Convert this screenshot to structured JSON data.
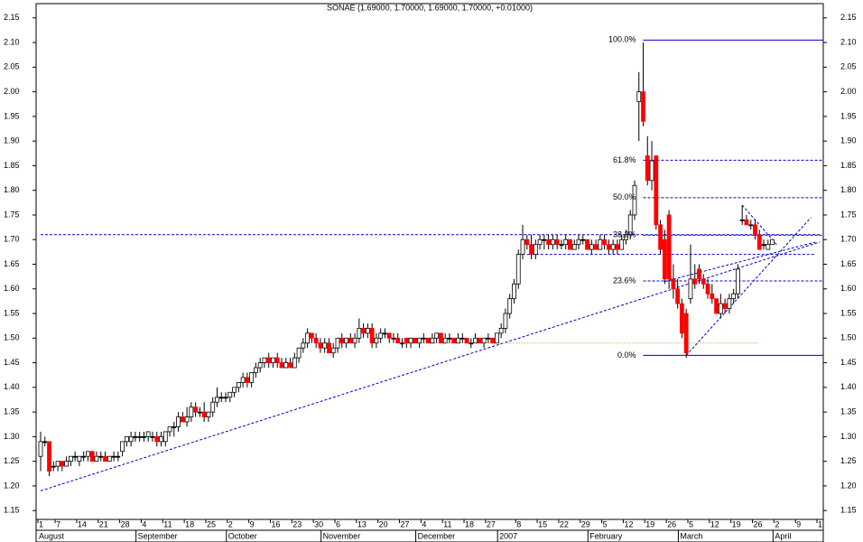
{
  "chart_data": {
    "type": "candlestick",
    "title": "SONAE (1.69000, 1.70000, 1.69000, 1.70000, +0.01000)",
    "categories": [
      "1",
      null,
      null,
      null,
      "7",
      null,
      null,
      null,
      null,
      "14",
      null,
      null,
      null,
      null,
      "21",
      null,
      null,
      null,
      null,
      "28",
      null,
      null,
      null,
      null,
      "4",
      null,
      null,
      null,
      null,
      "11",
      null,
      null,
      null,
      null,
      "18",
      null,
      null,
      null,
      null,
      "25",
      null,
      null,
      null,
      null,
      "2",
      null,
      null,
      null,
      null,
      "9",
      null,
      null,
      null,
      null,
      "16",
      null,
      null,
      null,
      null,
      "23",
      null,
      null,
      null,
      null,
      "30",
      null,
      null,
      null,
      null,
      "6",
      null,
      null,
      null,
      null,
      "13",
      null,
      null,
      null,
      null,
      "20",
      null,
      null,
      null,
      null,
      "27",
      null,
      null,
      null,
      null,
      "4",
      null,
      null,
      null,
      null,
      "11",
      null,
      null,
      null,
      null,
      "18",
      null,
      null,
      null,
      null,
      "27",
      null,
      null,
      null,
      null,
      null,
      null,
      "8",
      null,
      null,
      null,
      null,
      "15",
      null,
      null,
      null,
      null,
      "22",
      null,
      null,
      null,
      null,
      "29",
      null,
      null,
      null,
      null,
      "5",
      null,
      null,
      null,
      null,
      "12",
      null,
      null,
      null,
      null,
      "19",
      null,
      null,
      null,
      null,
      "26",
      null,
      null,
      null,
      null,
      "5",
      null,
      null,
      null,
      null,
      "12",
      null,
      null,
      null,
      null,
      "19",
      null,
      null,
      null,
      null,
      "26",
      null,
      null,
      null,
      null,
      "2",
      null,
      null,
      null,
      null,
      "9",
      null,
      null,
      null,
      null,
      "1"
    ],
    "months": [
      "August",
      null,
      null,
      null,
      null,
      null,
      null,
      null,
      null,
      null,
      null,
      null,
      null,
      null,
      null,
      null,
      null,
      null,
      null,
      null,
      null,
      null,
      null,
      "September",
      null,
      null,
      null,
      null,
      null,
      null,
      null,
      null,
      null,
      null,
      null,
      null,
      null,
      null,
      null,
      null,
      null,
      null,
      null,
      null,
      "October",
      null,
      null,
      null,
      null,
      null,
      null,
      null,
      null,
      null,
      null,
      null,
      null,
      null,
      null,
      null,
      null,
      null,
      null,
      null,
      null,
      null,
      "November",
      null,
      null,
      null,
      null,
      null,
      null,
      null,
      null,
      null,
      null,
      null,
      null,
      null,
      null,
      null,
      null,
      null,
      null,
      null,
      null,
      null,
      "December",
      null,
      null,
      null,
      null,
      null,
      null,
      null,
      null,
      null,
      null,
      null,
      null,
      null,
      null,
      null,
      null,
      null,
      null,
      "2007",
      null,
      null,
      null,
      null,
      null,
      null,
      null,
      null,
      null,
      null,
      null,
      null,
      null,
      null,
      null,
      null,
      null,
      null,
      null,
      null,
      "February",
      null,
      null,
      null,
      null,
      null,
      null,
      null,
      null,
      null,
      null,
      null,
      null,
      null,
      null,
      null,
      null,
      null,
      null,
      null,
      null,
      "March",
      null,
      null,
      null,
      null,
      null,
      null,
      null,
      null,
      null,
      null,
      null,
      null,
      null,
      null,
      null,
      null,
      null,
      null,
      null,
      null,
      null,
      "April",
      null,
      null,
      null,
      null,
      null,
      null,
      null,
      null,
      null,
      null
    ],
    "open": [
      1.26,
      1.29,
      1.29,
      1.24,
      1.24,
      1.25,
      1.24,
      1.25,
      1.26,
      1.25,
      1.26,
      1.26,
      1.27,
      1.25,
      1.26,
      1.26,
      1.25,
      1.26,
      1.26,
      1.27,
      1.29,
      1.29,
      1.3,
      1.3,
      1.3,
      1.3,
      1.3,
      1.3,
      1.29,
      1.29,
      1.31,
      1.32,
      1.32,
      1.34,
      1.33,
      1.34,
      1.36,
      1.35,
      1.35,
      1.34,
      1.35,
      1.37,
      1.38,
      1.38,
      1.38,
      1.39,
      1.4,
      1.41,
      1.42,
      1.41,
      1.43,
      1.44,
      1.45,
      1.46,
      1.45,
      1.46,
      1.45,
      1.44,
      1.45,
      1.44,
      1.46,
      1.48,
      1.49,
      1.51,
      1.5,
      1.49,
      1.48,
      1.49,
      1.47,
      1.48,
      1.5,
      1.49,
      1.5,
      1.49,
      1.5,
      1.52,
      1.51,
      1.52,
      1.49,
      1.5,
      1.51,
      1.51,
      1.5,
      1.5,
      1.49,
      1.5,
      1.49,
      1.5,
      1.49,
      1.5,
      1.5,
      1.49,
      1.5,
      1.51,
      1.49,
      1.5,
      1.5,
      1.49,
      1.5,
      1.5,
      1.49,
      1.49,
      1.5,
      1.49,
      1.5,
      1.5,
      1.49,
      1.51,
      1.52,
      1.55,
      1.58,
      1.61,
      1.67,
      1.7,
      1.69,
      1.67,
      1.69,
      1.7,
      1.7,
      1.69,
      1.7,
      1.69,
      1.69,
      1.7,
      1.68,
      1.69,
      1.7,
      1.7,
      1.68,
      1.69,
      1.68,
      1.7,
      1.69,
      1.68,
      1.69,
      1.68,
      1.7,
      1.71,
      1.75,
      1.98,
      2.0,
      1.87,
      1.82,
      1.87,
      1.73,
      1.7,
      1.75,
      1.62,
      1.6,
      1.57,
      1.55,
      1.58,
      1.62,
      1.64,
      1.62,
      1.61,
      1.59,
      1.58,
      1.55,
      1.57,
      1.56,
      1.58,
      1.59,
      1.74,
      1.74,
      1.73,
      1.73,
      1.71,
      1.69,
      1.68,
      1.69,
      null,
      null,
      null,
      null,
      null,
      null,
      null,
      null,
      null,
      null,
      null
    ],
    "high": [
      1.31,
      1.3,
      1.29,
      1.25,
      1.25,
      1.25,
      1.26,
      1.26,
      1.27,
      1.26,
      1.27,
      1.27,
      1.27,
      1.27,
      1.27,
      1.27,
      1.26,
      1.27,
      1.27,
      1.29,
      1.3,
      1.31,
      1.31,
      1.31,
      1.31,
      1.31,
      1.31,
      1.31,
      1.31,
      1.31,
      1.32,
      1.33,
      1.35,
      1.35,
      1.36,
      1.37,
      1.37,
      1.36,
      1.37,
      1.35,
      1.38,
      1.4,
      1.39,
      1.39,
      1.39,
      1.4,
      1.41,
      1.43,
      1.43,
      1.43,
      1.45,
      1.46,
      1.46,
      1.47,
      1.46,
      1.47,
      1.46,
      1.46,
      1.46,
      1.47,
      1.48,
      1.5,
      1.52,
      1.51,
      1.51,
      1.5,
      1.5,
      1.5,
      1.49,
      1.5,
      1.51,
      1.5,
      1.51,
      1.51,
      1.54,
      1.53,
      1.53,
      1.53,
      1.51,
      1.52,
      1.52,
      1.51,
      1.51,
      1.51,
      1.5,
      1.5,
      1.5,
      1.5,
      1.5,
      1.51,
      1.5,
      1.51,
      1.51,
      1.51,
      1.51,
      1.51,
      1.5,
      1.51,
      1.51,
      1.5,
      1.5,
      1.51,
      1.5,
      1.5,
      1.51,
      1.5,
      1.51,
      1.53,
      1.56,
      1.59,
      1.62,
      1.68,
      1.73,
      1.71,
      1.71,
      1.7,
      1.71,
      1.71,
      1.71,
      1.71,
      1.71,
      1.7,
      1.71,
      1.7,
      1.7,
      1.71,
      1.71,
      1.7,
      1.7,
      1.7,
      1.71,
      1.71,
      1.7,
      1.7,
      1.7,
      1.71,
      1.72,
      1.76,
      1.82,
      2.04,
      2.1,
      1.91,
      1.9,
      1.87,
      1.74,
      1.72,
      1.76,
      1.65,
      1.62,
      1.58,
      1.56,
      1.69,
      1.65,
      1.65,
      1.63,
      1.62,
      1.61,
      1.58,
      1.59,
      1.58,
      1.59,
      1.6,
      1.65,
      1.77,
      1.75,
      1.74,
      1.74,
      1.72,
      1.7,
      1.7,
      1.7,
      null,
      null,
      null,
      null,
      null,
      null,
      null,
      null,
      null,
      null,
      null
    ],
    "low": [
      1.23,
      1.28,
      1.22,
      1.23,
      1.23,
      1.23,
      1.24,
      1.24,
      1.25,
      1.24,
      1.25,
      1.25,
      1.25,
      1.25,
      1.25,
      1.25,
      1.25,
      1.25,
      1.25,
      1.26,
      1.28,
      1.28,
      1.29,
      1.29,
      1.29,
      1.29,
      1.29,
      1.28,
      1.28,
      1.28,
      1.3,
      1.3,
      1.31,
      1.33,
      1.32,
      1.33,
      1.34,
      1.34,
      1.33,
      1.33,
      1.34,
      1.36,
      1.37,
      1.37,
      1.37,
      1.38,
      1.39,
      1.4,
      1.4,
      1.4,
      1.42,
      1.43,
      1.44,
      1.44,
      1.44,
      1.44,
      1.44,
      1.44,
      1.44,
      1.44,
      1.45,
      1.47,
      1.48,
      1.49,
      1.48,
      1.47,
      1.47,
      1.47,
      1.46,
      1.47,
      1.48,
      1.48,
      1.49,
      1.48,
      1.49,
      1.5,
      1.5,
      1.48,
      1.48,
      1.49,
      1.5,
      1.49,
      1.49,
      1.49,
      1.48,
      1.48,
      1.48,
      1.49,
      1.48,
      1.49,
      1.49,
      1.49,
      1.49,
      1.49,
      1.49,
      1.49,
      1.49,
      1.49,
      1.49,
      1.49,
      1.48,
      1.49,
      1.49,
      1.48,
      1.49,
      1.49,
      1.49,
      1.5,
      1.51,
      1.54,
      1.57,
      1.6,
      1.66,
      1.68,
      1.66,
      1.66,
      1.68,
      1.68,
      1.68,
      1.68,
      1.68,
      1.68,
      1.68,
      1.68,
      1.68,
      1.68,
      1.69,
      1.68,
      1.67,
      1.68,
      1.68,
      1.68,
      1.67,
      1.67,
      1.67,
      1.68,
      1.69,
      1.7,
      1.74,
      1.9,
      1.93,
      1.81,
      1.8,
      1.72,
      1.67,
      1.61,
      1.6,
      1.58,
      1.56,
      1.5,
      1.46,
      1.57,
      1.6,
      1.61,
      1.6,
      1.58,
      1.57,
      1.55,
      1.54,
      1.55,
      1.55,
      1.57,
      1.58,
      1.73,
      1.73,
      1.72,
      1.7,
      1.68,
      1.68,
      1.68,
      1.69,
      null,
      null,
      null,
      null,
      null,
      null,
      null,
      null,
      null,
      null,
      null
    ],
    "close": [
      1.29,
      1.29,
      1.23,
      1.24,
      1.25,
      1.24,
      1.25,
      1.26,
      1.26,
      1.26,
      1.26,
      1.27,
      1.25,
      1.26,
      1.26,
      1.25,
      1.26,
      1.26,
      1.26,
      1.29,
      1.3,
      1.3,
      1.3,
      1.3,
      1.3,
      1.31,
      1.3,
      1.29,
      1.3,
      1.31,
      1.32,
      1.32,
      1.34,
      1.33,
      1.34,
      1.36,
      1.35,
      1.35,
      1.34,
      1.35,
      1.37,
      1.38,
      1.38,
      1.38,
      1.39,
      1.4,
      1.41,
      1.42,
      1.41,
      1.43,
      1.44,
      1.45,
      1.46,
      1.45,
      1.46,
      1.45,
      1.44,
      1.45,
      1.44,
      1.46,
      1.48,
      1.49,
      1.51,
      1.5,
      1.49,
      1.48,
      1.49,
      1.47,
      1.48,
      1.5,
      1.49,
      1.5,
      1.49,
      1.5,
      1.52,
      1.51,
      1.52,
      1.49,
      1.5,
      1.51,
      1.51,
      1.5,
      1.5,
      1.49,
      1.49,
      1.49,
      1.5,
      1.49,
      1.5,
      1.5,
      1.49,
      1.5,
      1.51,
      1.49,
      1.5,
      1.5,
      1.49,
      1.5,
      1.5,
      1.49,
      1.49,
      1.5,
      1.49,
      1.5,
      1.5,
      1.49,
      1.51,
      1.52,
      1.55,
      1.58,
      1.61,
      1.67,
      1.7,
      1.69,
      1.67,
      1.69,
      1.7,
      1.7,
      1.69,
      1.7,
      1.69,
      1.69,
      1.7,
      1.68,
      1.69,
      1.7,
      1.7,
      1.68,
      1.69,
      1.68,
      1.7,
      1.69,
      1.68,
      1.69,
      1.68,
      1.7,
      1.71,
      1.75,
      1.81,
      2.0,
      1.94,
      1.82,
      1.86,
      1.73,
      1.68,
      1.62,
      1.62,
      1.6,
      1.57,
      1.51,
      1.47,
      1.62,
      1.61,
      1.62,
      1.61,
      1.59,
      1.58,
      1.55,
      1.57,
      1.56,
      1.58,
      1.59,
      1.64,
      1.74,
      1.73,
      1.73,
      1.71,
      1.68,
      1.69,
      1.69,
      1.7,
      null,
      null,
      null,
      null,
      null,
      null,
      null,
      null,
      null,
      null,
      null
    ],
    "up_color": "#ffffff",
    "down_color": "#ff0000",
    "flat_color": "#000000",
    "ylim": [
      1.132,
      2.179
    ],
    "yticks": [
      {
        "value": 1.15,
        "label": "1.15"
      },
      {
        "value": 1.2,
        "label": "1.20"
      },
      {
        "value": 1.25,
        "label": "1.25"
      },
      {
        "value": 1.3,
        "label": "1.30"
      },
      {
        "value": 1.35,
        "label": "1.35"
      },
      {
        "value": 1.4,
        "label": "1.40"
      },
      {
        "value": 1.45,
        "label": "1.45"
      },
      {
        "value": 1.5,
        "label": "1.50"
      },
      {
        "value": 1.55,
        "label": "1.55"
      },
      {
        "value": 1.6,
        "label": "1.60"
      },
      {
        "value": 1.65,
        "label": "1.65"
      },
      {
        "value": 1.7,
        "label": "1.70"
      },
      {
        "value": 1.75,
        "label": "1.75"
      },
      {
        "value": 1.8,
        "label": "1.80"
      },
      {
        "value": 1.85,
        "label": "1.85"
      },
      {
        "value": 1.9,
        "label": "1.90"
      },
      {
        "value": 1.95,
        "label": "1.95"
      },
      {
        "value": 2.0,
        "label": "2.00"
      },
      {
        "value": 2.05,
        "label": "2.05"
      },
      {
        "value": 2.1,
        "label": "2.10"
      },
      {
        "value": 2.15,
        "label": "2.15"
      }
    ],
    "trendlines": [
      {
        "points": [
          [
            0,
            1.19
          ],
          [
            181,
            1.695
          ]
        ],
        "color": "#0000cc",
        "dash": "3,2"
      },
      {
        "points": [
          [
            0,
            1.71
          ],
          [
            181,
            1.71
          ]
        ],
        "color": "#0000cc",
        "dash": "3,2"
      },
      {
        "points": [
          [
            113,
            1.67
          ],
          [
            180,
            1.67
          ]
        ],
        "color": "#0000cc",
        "dash": "3,2"
      },
      {
        "points": [
          [
            84,
            1.49
          ],
          [
            167,
            1.49
          ]
        ],
        "color": "#cc8800",
        "dash": "1,2"
      },
      {
        "points": [
          [
            150,
            1.465
          ],
          [
            179,
            1.745
          ]
        ],
        "color": "#0000cc",
        "dash": "3,2"
      },
      {
        "points": [
          [
            163,
            1.77
          ],
          [
            171,
            1.69
          ]
        ],
        "color": "#0000cc",
        "dash": "3,2"
      },
      {
        "points": [
          [
            145,
            1.615
          ],
          [
            180,
            1.695
          ]
        ],
        "color": "#0000cc",
        "dash": "3,2"
      }
    ],
    "fibonacci": {
      "start": 140,
      "color": "#0000cc",
      "label_color": "#1a1a9a",
      "labels": [
        "100.0%",
        "61.8%",
        "50.0%",
        "38.2%",
        "23.6%",
        "0.0%"
      ],
      "prices": [
        2.105,
        1.861,
        1.785,
        1.709,
        1.616,
        1.465
      ],
      "dashes": [
        "none",
        "3,2",
        "3,2",
        "3,2",
        "3,2",
        "none"
      ]
    }
  }
}
